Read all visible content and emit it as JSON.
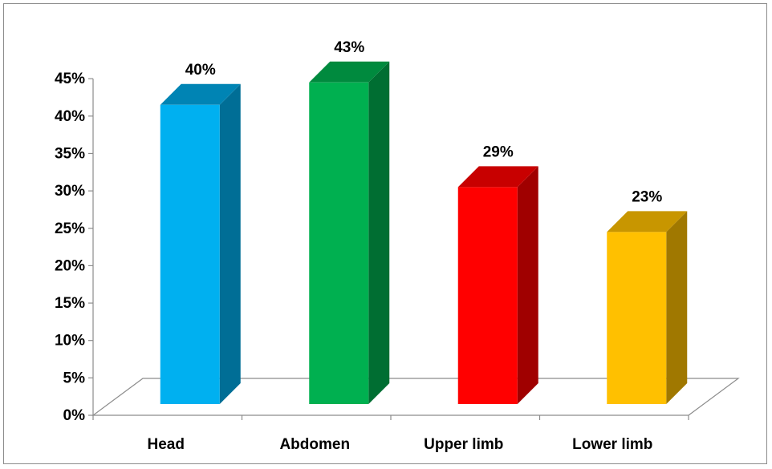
{
  "chart_data": {
    "type": "bar",
    "title": "",
    "xlabel": "",
    "ylabel": "",
    "categories": [
      "Head",
      "Abdomen",
      "Upper limb",
      "Lower limb"
    ],
    "values": [
      40,
      43,
      29,
      23
    ],
    "data_labels": [
      "40%",
      "43%",
      "29%",
      "23%"
    ],
    "ylim": [
      0,
      45
    ],
    "yticks": [
      "0%",
      "5%",
      "10%",
      "15%",
      "20%",
      "25%",
      "30%",
      "35%",
      "40%",
      "45%"
    ],
    "grid": false,
    "legend": "none",
    "style": "3d-column",
    "colors": {
      "front": [
        "#00B0F0",
        "#00B050",
        "#FF0000",
        "#FFC000"
      ],
      "side": [
        "#006E96",
        "#006E32",
        "#A00000",
        "#A07800"
      ],
      "top": [
        "#0084B4",
        "#008A3E",
        "#C80000",
        "#C89600"
      ]
    }
  }
}
